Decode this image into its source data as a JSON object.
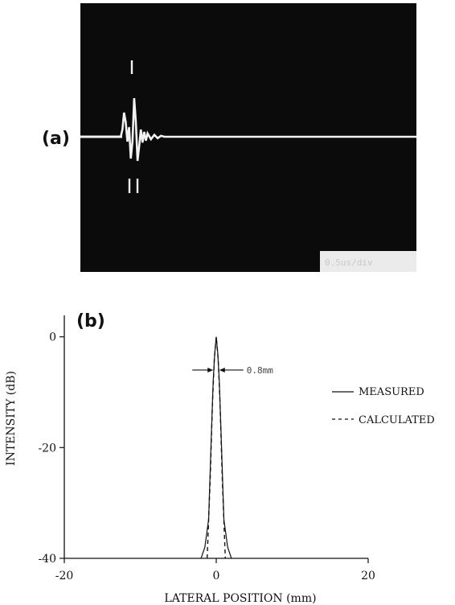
{
  "panel_a": {
    "label": "(a)",
    "scope_note": "0.5us/div"
  },
  "panel_b": {
    "label": "(b)",
    "annotation_text": "0.8mm"
  },
  "chart_data": [
    {
      "type": "line",
      "panel": "a",
      "title": "",
      "xlabel": "",
      "ylabel": "",
      "note": "oscilloscope trace of a short ultrasonic pulse",
      "trace": {
        "x": [
          0,
          0.05,
          0.12,
          0.125,
          0.13,
          0.135,
          0.14,
          0.145,
          0.15,
          0.155,
          0.16,
          0.165,
          0.17,
          0.175,
          0.18,
          0.185,
          0.19,
          0.195,
          0.2,
          0.21,
          0.22,
          0.23,
          0.24,
          0.25,
          0.3,
          0.5,
          1.0
        ],
        "y": [
          0,
          0,
          0,
          0.15,
          0.5,
          0.3,
          -0.1,
          0.2,
          -0.45,
          -0.1,
          0.8,
          0.3,
          -0.5,
          -0.2,
          0.15,
          -0.12,
          0.1,
          -0.08,
          0.07,
          -0.05,
          0.04,
          -0.03,
          0.02,
          0,
          0,
          0,
          0
        ],
        "xlim": [
          0,
          1
        ],
        "ylim": [
          -1,
          1
        ]
      }
    },
    {
      "type": "line",
      "panel": "b",
      "title": "",
      "xlabel": "LATERAL POSITION  (mm)",
      "ylabel": "INTENSITY  (dB)",
      "xlim": [
        -20,
        20
      ],
      "ylim": [
        -40,
        3
      ],
      "x_ticks": [
        -20,
        0,
        20
      ],
      "y_ticks": [
        0,
        -20,
        -40
      ],
      "x_tick_labels": [
        "-20",
        "0",
        "20"
      ],
      "y_tick_labels": [
        "0",
        "-20",
        "-40"
      ],
      "grid": false,
      "legend_position": "right",
      "series": [
        {
          "name": "MEASURED",
          "style": "solid",
          "color": "#111111",
          "x": [
            -2.0,
            -1.5,
            -1.0,
            -0.7,
            -0.4,
            -0.2,
            0.0,
            0.2,
            0.4,
            0.7,
            1.0,
            1.5,
            2.0
          ],
          "y": [
            -40,
            -38,
            -33,
            -20,
            -8,
            -3,
            0,
            -3,
            -8,
            -20,
            -33,
            -38,
            -40
          ]
        },
        {
          "name": "CALCULATED",
          "style": "dashed",
          "color": "#111111",
          "x": [
            -1.2,
            -0.8,
            -0.5,
            -0.25,
            0.0,
            0.25,
            0.5,
            0.8,
            1.2
          ],
          "y": [
            -40,
            -26,
            -12,
            -4,
            0,
            -4,
            -12,
            -26,
            -40
          ]
        }
      ],
      "annotations": [
        {
          "text": "0.8mm",
          "x": 0.0,
          "y": -6,
          "width_mm": 0.8
        }
      ]
    }
  ]
}
